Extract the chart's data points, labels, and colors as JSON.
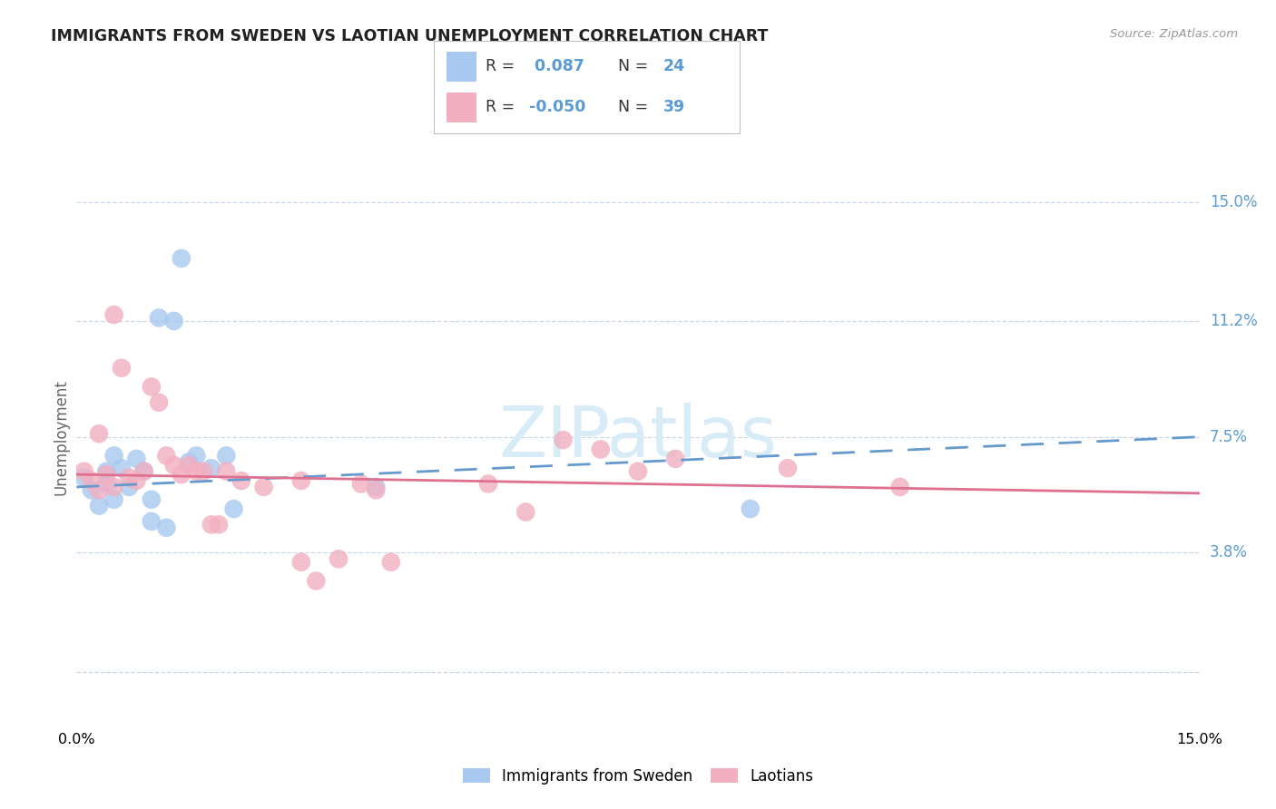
{
  "title": "IMMIGRANTS FROM SWEDEN VS LAOTIAN UNEMPLOYMENT CORRELATION CHART",
  "source": "Source: ZipAtlas.com",
  "ylabel": "Unemployment",
  "y_ticks": [
    0.0,
    0.038,
    0.075,
    0.112,
    0.15
  ],
  "y_tick_labels": [
    "",
    "3.8%",
    "7.5%",
    "11.2%",
    "15.0%"
  ],
  "x_range": [
    0.0,
    0.15
  ],
  "y_range": [
    -0.018,
    0.168
  ],
  "blue_color": "#a8c8f0",
  "pink_color": "#f2afc0",
  "line_blue_color": "#6699cc",
  "line_pink_color": "#e07090",
  "ytick_color": "#5b9bd5",
  "grid_color": "#c8d8e8",
  "watermark_color": "#d8ecf8",
  "title_color": "#222222",
  "source_color": "#999999",
  "blue_scatter": [
    [
      0.001,
      0.062
    ],
    [
      0.002,
      0.058
    ],
    [
      0.003,
      0.053
    ],
    [
      0.004,
      0.06
    ],
    [
      0.004,
      0.064
    ],
    [
      0.005,
      0.069
    ],
    [
      0.005,
      0.055
    ],
    [
      0.006,
      0.065
    ],
    [
      0.007,
      0.059
    ],
    [
      0.008,
      0.068
    ],
    [
      0.009,
      0.064
    ],
    [
      0.01,
      0.055
    ],
    [
      0.01,
      0.048
    ],
    [
      0.011,
      0.113
    ],
    [
      0.012,
      0.046
    ],
    [
      0.013,
      0.112
    ],
    [
      0.014,
      0.132
    ],
    [
      0.015,
      0.067
    ],
    [
      0.016,
      0.069
    ],
    [
      0.018,
      0.065
    ],
    [
      0.02,
      0.069
    ],
    [
      0.021,
      0.052
    ],
    [
      0.04,
      0.059
    ],
    [
      0.09,
      0.052
    ]
  ],
  "pink_scatter": [
    [
      0.001,
      0.064
    ],
    [
      0.002,
      0.061
    ],
    [
      0.003,
      0.058
    ],
    [
      0.003,
      0.076
    ],
    [
      0.004,
      0.063
    ],
    [
      0.005,
      0.059
    ],
    [
      0.005,
      0.114
    ],
    [
      0.006,
      0.097
    ],
    [
      0.007,
      0.062
    ],
    [
      0.008,
      0.061
    ],
    [
      0.009,
      0.064
    ],
    [
      0.01,
      0.091
    ],
    [
      0.011,
      0.086
    ],
    [
      0.012,
      0.069
    ],
    [
      0.013,
      0.066
    ],
    [
      0.014,
      0.063
    ],
    [
      0.015,
      0.066
    ],
    [
      0.016,
      0.064
    ],
    [
      0.017,
      0.064
    ],
    [
      0.018,
      0.047
    ],
    [
      0.019,
      0.047
    ],
    [
      0.02,
      0.064
    ],
    [
      0.022,
      0.061
    ],
    [
      0.025,
      0.059
    ],
    [
      0.03,
      0.061
    ],
    [
      0.03,
      0.035
    ],
    [
      0.032,
      0.029
    ],
    [
      0.035,
      0.036
    ],
    [
      0.038,
      0.06
    ],
    [
      0.04,
      0.058
    ],
    [
      0.042,
      0.035
    ],
    [
      0.055,
      0.06
    ],
    [
      0.06,
      0.051
    ],
    [
      0.065,
      0.074
    ],
    [
      0.07,
      0.071
    ],
    [
      0.075,
      0.064
    ],
    [
      0.08,
      0.068
    ],
    [
      0.095,
      0.065
    ],
    [
      0.11,
      0.059
    ]
  ],
  "blue_line_x": [
    0.0,
    0.15
  ],
  "blue_line_y": [
    0.059,
    0.075
  ],
  "pink_line_x": [
    0.0,
    0.15
  ],
  "pink_line_y": [
    0.063,
    0.057
  ]
}
